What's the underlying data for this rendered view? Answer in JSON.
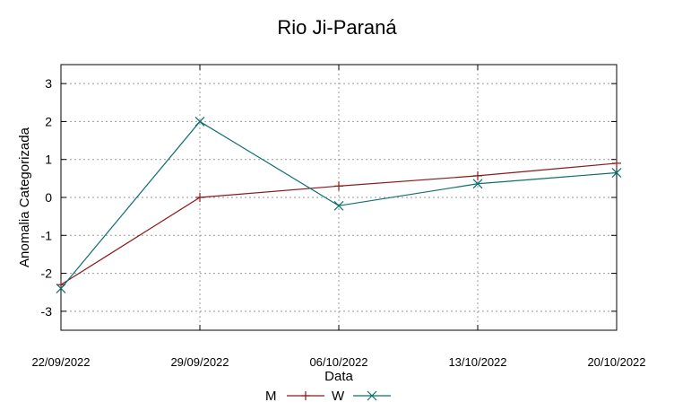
{
  "chart_data": {
    "type": "line",
    "title": "Rio Ji-Paraná",
    "xlabel": "Data",
    "ylabel": "Anomalia Categorizada",
    "categories": [
      "22/09/2022",
      "29/09/2022",
      "06/10/2022",
      "13/10/2022",
      "20/10/2022"
    ],
    "ylim": [
      -3.5,
      3.5
    ],
    "yticks": [
      3,
      2,
      1,
      0,
      -1,
      -2,
      -3
    ],
    "grid": true,
    "legend_position": "bottom-center",
    "series": [
      {
        "name": "M",
        "color": "#8b1a1a",
        "marker": "plus",
        "values": [
          -2.3,
          0.0,
          0.3,
          0.57,
          0.9
        ]
      },
      {
        "name": "W",
        "color": "#0f6e6e",
        "marker": "cross",
        "values": [
          -2.4,
          2.0,
          -0.22,
          0.36,
          0.65
        ]
      }
    ]
  }
}
